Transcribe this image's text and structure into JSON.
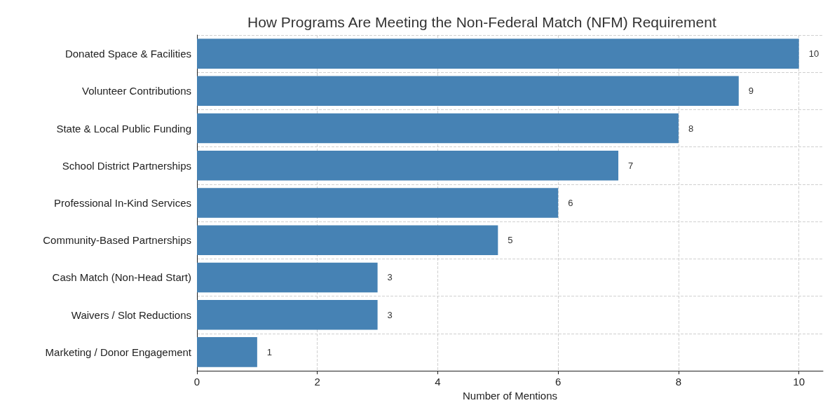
{
  "chart_data": {
    "type": "bar",
    "orientation": "horizontal",
    "title": "How Programs Are Meeting the Non-Federal Match (NFM) Requirement",
    "xlabel": "Number of Mentions",
    "categories": [
      "Donated Space & Facilities",
      "Volunteer Contributions",
      "State & Local Public Funding",
      "School District Partnerships",
      "Professional In-Kind Services",
      "Community-Based Partnerships",
      "Cash Match (Non-Head Start)",
      "Waivers / Slot Reductions",
      "Marketing / Donor Engagement"
    ],
    "values": [
      10,
      9,
      8,
      7,
      6,
      5,
      3,
      3,
      1
    ],
    "color": "#4682b4",
    "xlim": [
      0,
      10.4
    ],
    "xticks": [
      0,
      2,
      4,
      6,
      8,
      10
    ],
    "grid": true,
    "data_labels": true
  }
}
